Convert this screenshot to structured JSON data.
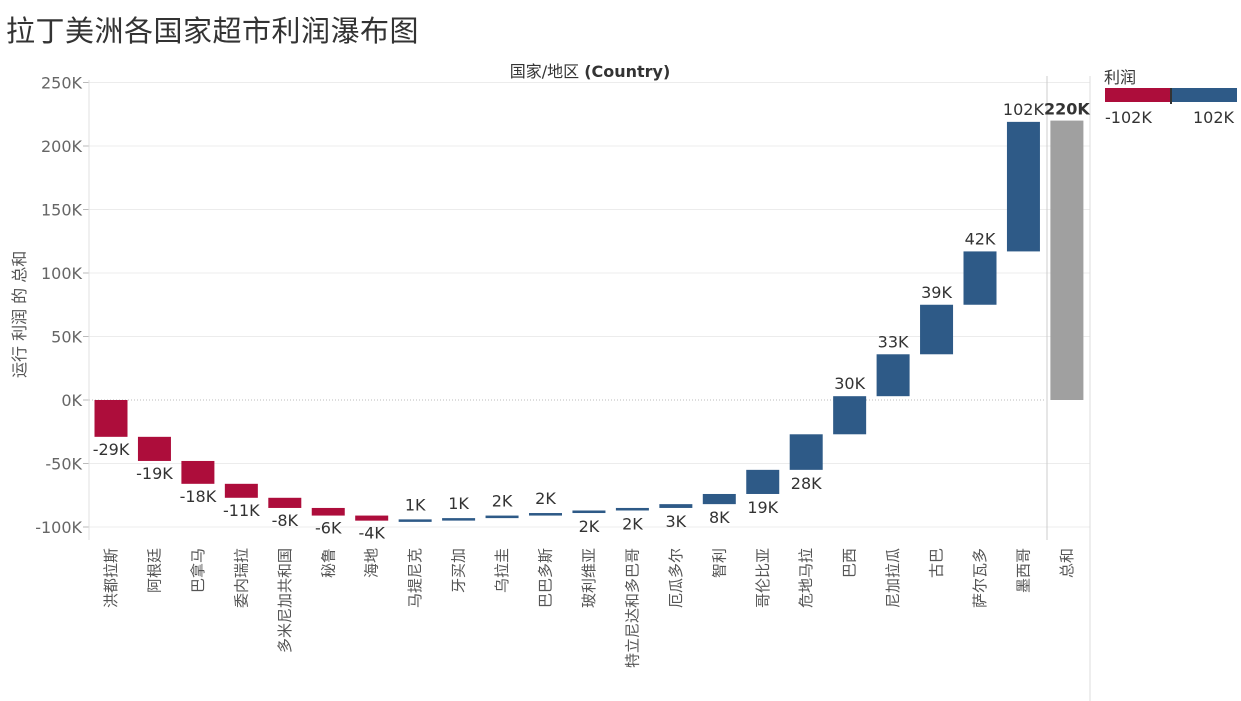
{
  "chart_data": {
    "type": "waterfall",
    "title": "拉丁美洲各国家超市利润瀑布图",
    "header": {
      "prefix": "国家/地区 ",
      "field": "(Country)"
    },
    "ylabel": "运行 利润 的 总和",
    "ylim": [
      -110000,
      255000
    ],
    "yticks": [
      250000,
      200000,
      150000,
      100000,
      50000,
      0,
      -50000,
      -100000
    ],
    "ytick_labels": [
      "250K",
      "200K",
      "150K",
      "100K",
      "50K",
      "0K",
      "-50K",
      "-100K"
    ],
    "categories": [
      "洪都拉斯",
      "阿根廷",
      "巴拿马",
      "委内瑞拉",
      "多米尼加共和国",
      "秘鲁",
      "海地",
      "马提尼克",
      "牙买加",
      "乌拉圭",
      "巴巴多斯",
      "玻利维亚",
      "特立尼达和多巴哥",
      "厄瓜多尔",
      "智利",
      "哥伦比亚",
      "危地马拉",
      "巴西",
      "尼加拉瓜",
      "古巴",
      "萨尔瓦多",
      "墨西哥",
      "总和"
    ],
    "values": [
      -29000,
      -19000,
      -18000,
      -11000,
      -8000,
      -6000,
      -4000,
      1000,
      1000,
      2000,
      2000,
      2000,
      2000,
      3000,
      8000,
      19000,
      28000,
      30000,
      33000,
      39000,
      42000,
      102000,
      220000
    ],
    "data_labels": [
      "-29K",
      "-19K",
      "-18K",
      "-11K",
      "-8K",
      "-6K",
      "-4K",
      "1K",
      "1K",
      "2K",
      "2K",
      "2K",
      "2K",
      "3K",
      "8K",
      "19K",
      "28K",
      "30K",
      "33K",
      "39K",
      "42K",
      "102K",
      "220K"
    ],
    "total_index": 22,
    "colors": {
      "negative": "#ad0d3b",
      "positive": "#2e5a87",
      "total": "#a0a0a0"
    }
  },
  "legend": {
    "title": "利润",
    "min_label": "-102K",
    "max_label": "102K"
  }
}
